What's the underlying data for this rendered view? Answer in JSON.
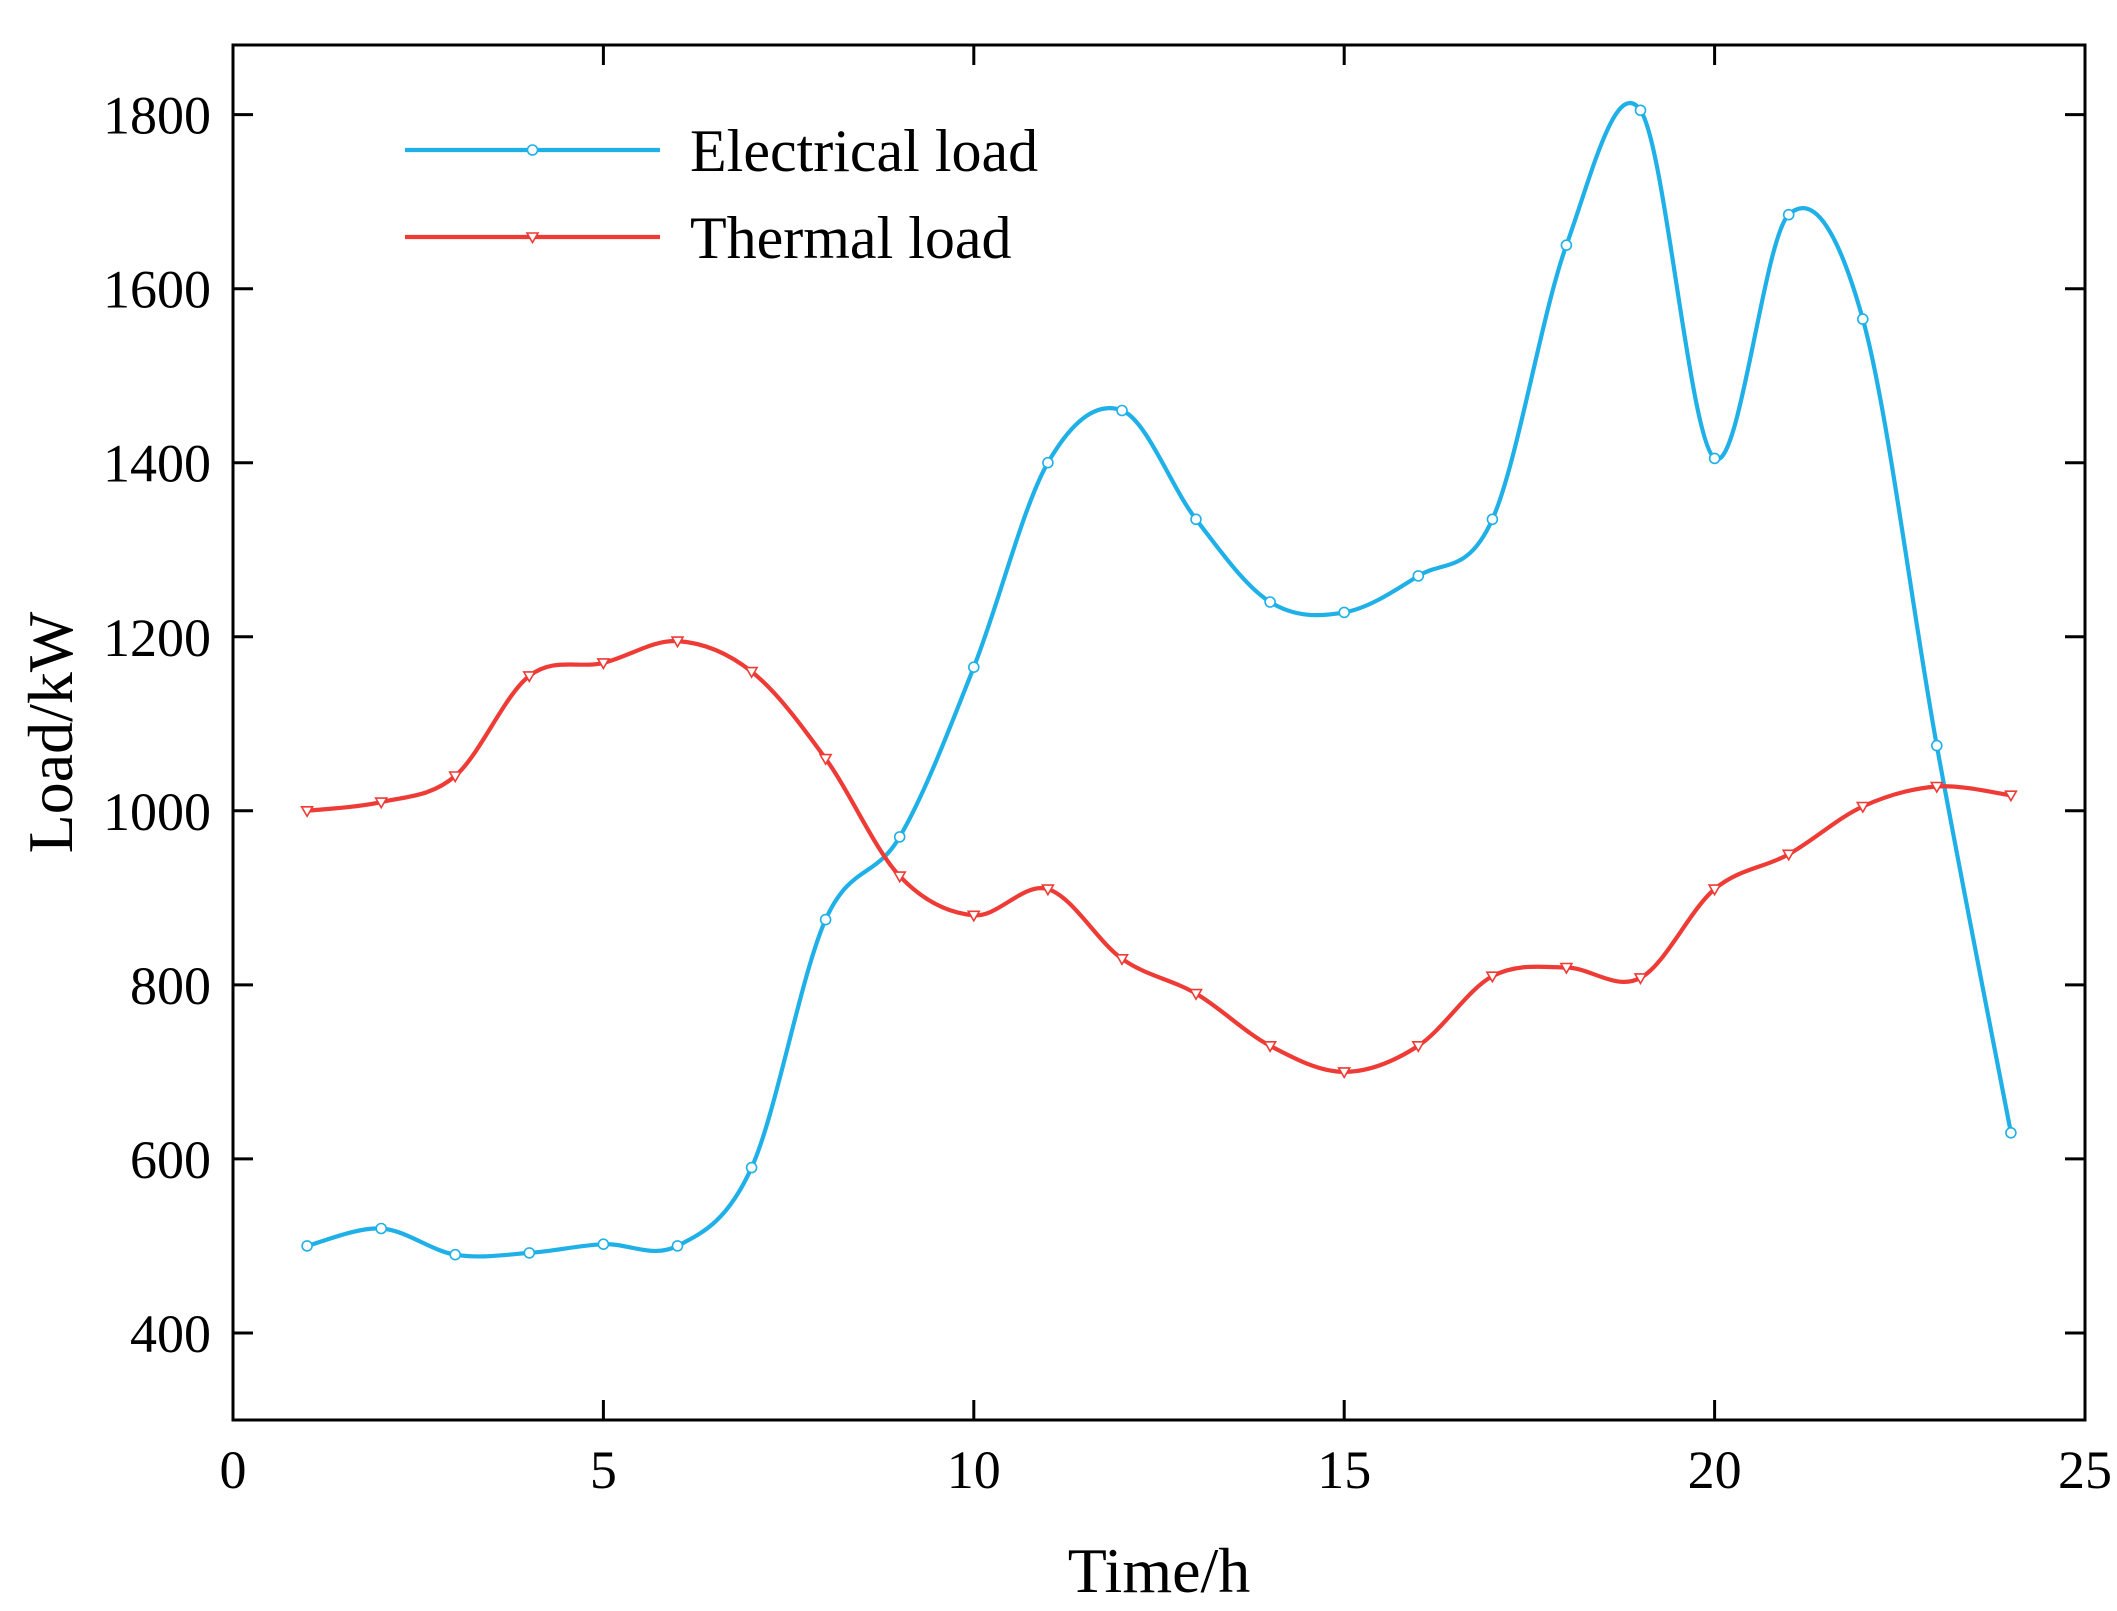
{
  "figure": {
    "background": "#ffffff",
    "axis_color": "#000000"
  },
  "chart_data": {
    "type": "line",
    "title": "",
    "xlabel": "Time/h",
    "ylabel": "Load/kW",
    "xlim": [
      0,
      25
    ],
    "ylim": [
      300,
      1880
    ],
    "x_ticks": [
      0,
      5,
      10,
      15,
      20,
      25
    ],
    "y_ticks": [
      400,
      600,
      800,
      1000,
      1200,
      1400,
      1600,
      1800
    ],
    "grid": false,
    "legend_position": "top-left",
    "x": [
      1,
      2,
      3,
      4,
      5,
      6,
      7,
      8,
      9,
      10,
      11,
      12,
      13,
      14,
      15,
      16,
      17,
      18,
      19,
      20,
      21,
      22,
      23,
      24
    ],
    "series": [
      {
        "name": "Electrical load",
        "color": "#1FB0E8",
        "marker": "circle",
        "values": [
          500,
          520,
          490,
          492,
          502,
          500,
          590,
          875,
          970,
          1165,
          1400,
          1460,
          1335,
          1240,
          1228,
          1270,
          1335,
          1650,
          1805,
          1405,
          1685,
          1565,
          1075,
          630
        ]
      },
      {
        "name": "Thermal load",
        "color": "#EE3B36",
        "marker": "triangle-down",
        "values": [
          1000,
          1010,
          1040,
          1155,
          1170,
          1195,
          1160,
          1060,
          925,
          880,
          910,
          830,
          790,
          730,
          700,
          730,
          810,
          820,
          808,
          910,
          950,
          1005,
          1028,
          1018
        ]
      }
    ]
  }
}
